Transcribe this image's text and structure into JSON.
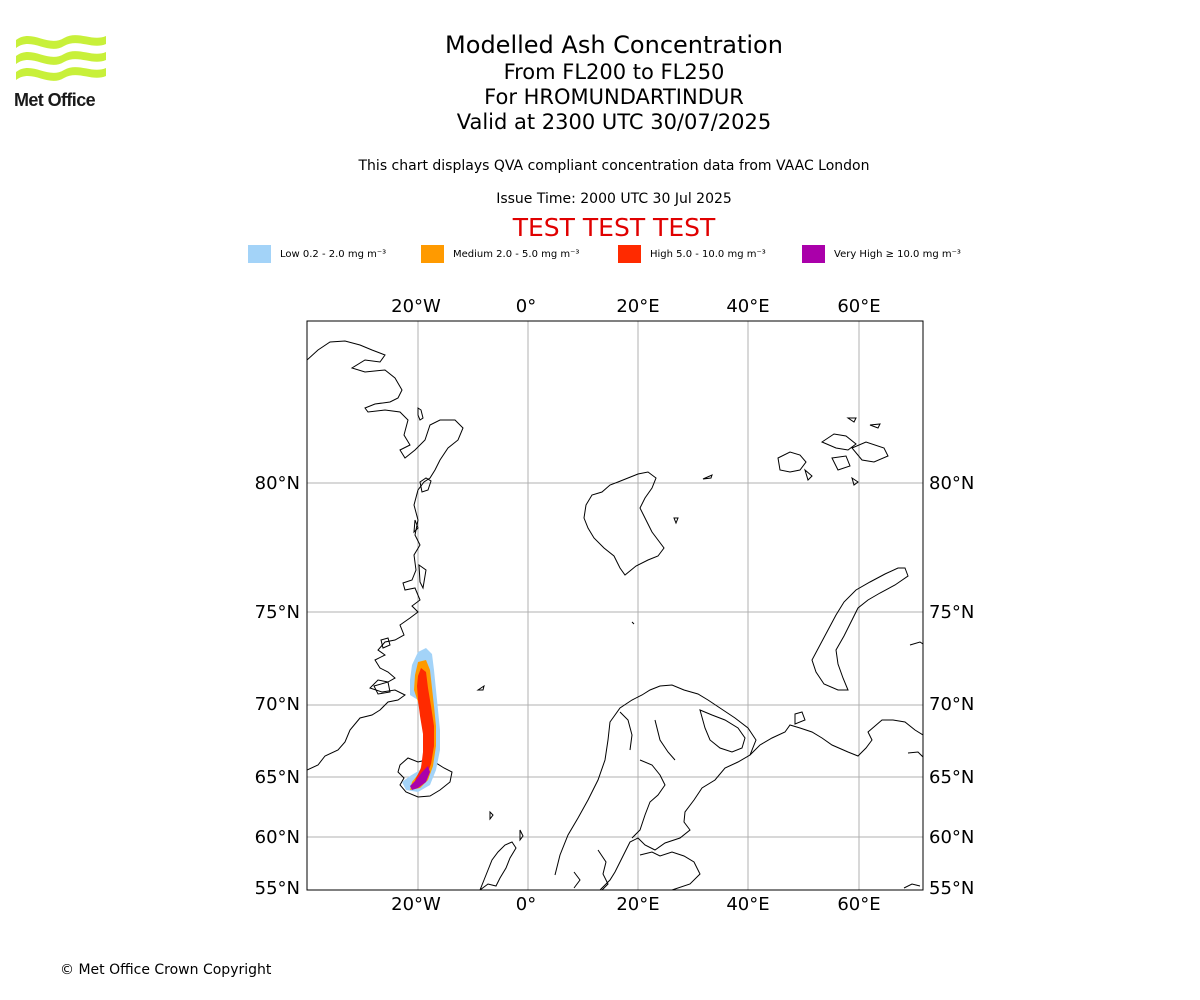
{
  "logo": {
    "text": "Met Office"
  },
  "header": {
    "title": "Modelled Ash Concentration",
    "level_range": "From FL200 to FL250",
    "volcano": "For HROMUNDARTINDUR",
    "valid_time": "Valid at 2300 UTC 30/07/2025",
    "description": "This chart displays QVA compliant concentration data from VAAC London",
    "issue_time": "Issue Time: 2000 UTC 30 Jul 2025",
    "test_banner": "TEST TEST TEST"
  },
  "legend": [
    {
      "label": "Low 0.2 - 2.0 mg m⁻³",
      "color": "#a3d3f8"
    },
    {
      "label": "Medium 2.0 - 5.0 mg m⁻³",
      "color": "#ff9a00"
    },
    {
      "label": "High 5.0 - 10.0 mg m⁻³",
      "color": "#ff2a00"
    },
    {
      "label": "Very High ≥ 10.0 mg m⁻³",
      "color": "#aa00aa"
    }
  ],
  "map": {
    "lon_labels": [
      "20°W",
      "0°",
      "20°E",
      "40°E",
      "60°E"
    ],
    "lat_labels": [
      "80°N",
      "75°N",
      "70°N",
      "65°N",
      "60°N",
      "55°N"
    ],
    "coastline_color": "#000000",
    "gridline_color": "#b0b0b0",
    "ash_colors": {
      "low": "#a3d3f8",
      "medium": "#ff9a00",
      "high": "#ff2a00",
      "very_high": "#aa00aa"
    }
  },
  "footer": {
    "copyright": "© Met Office Crown Copyright"
  }
}
